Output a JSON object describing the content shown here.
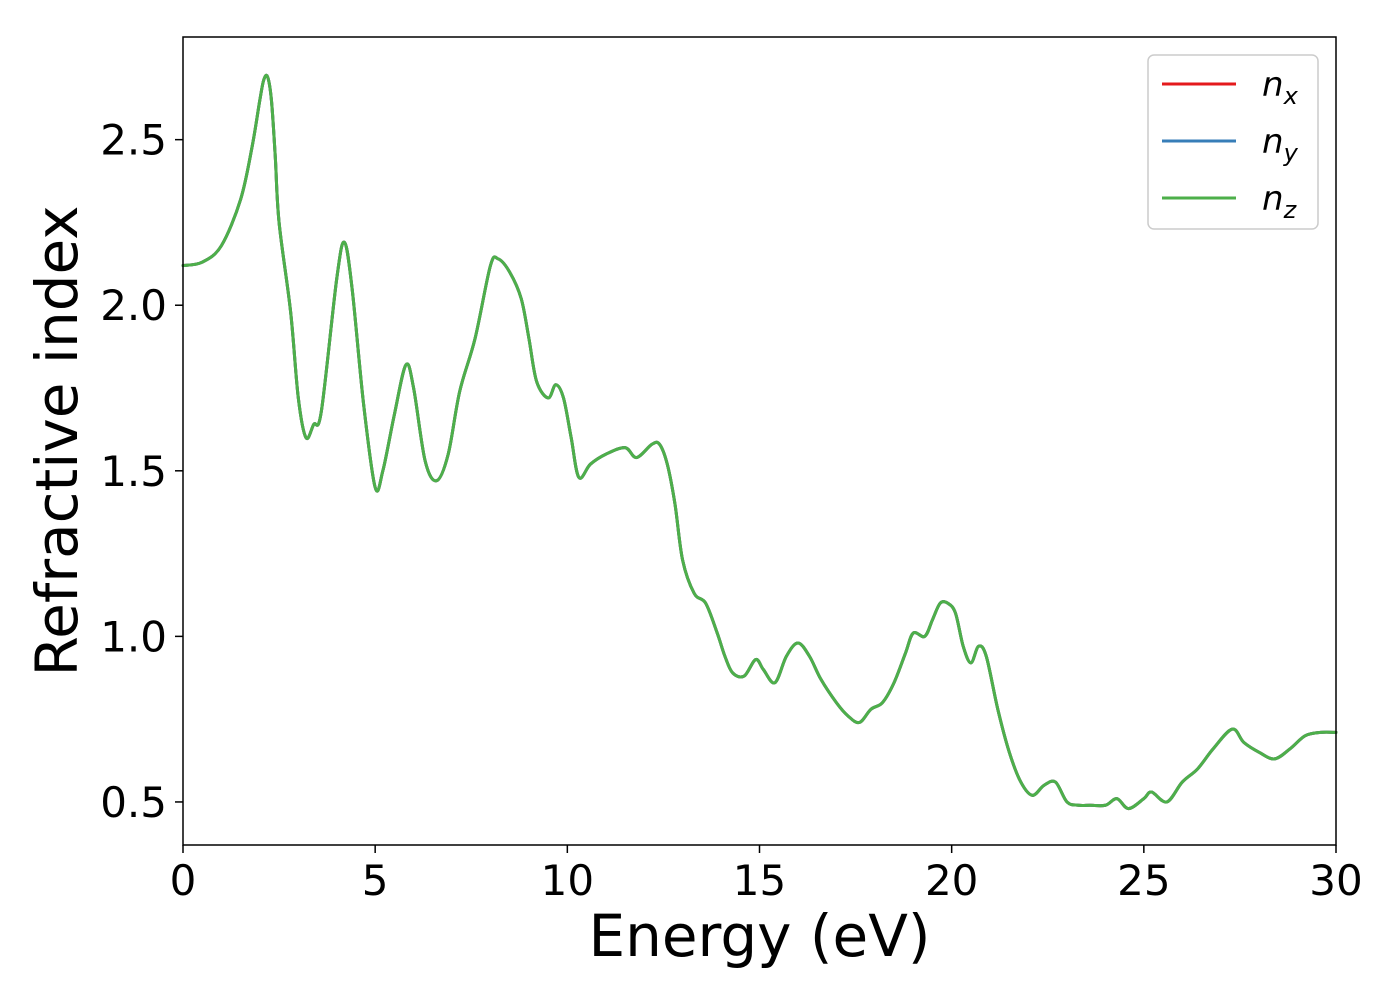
{
  "chart_data": {
    "type": "line",
    "title": "",
    "xlabel": "Energy (eV)",
    "ylabel": "Refractive index",
    "xlim": [
      0,
      30
    ],
    "ylim": [
      0.37,
      2.81
    ],
    "xticks": [
      0,
      5,
      10,
      15,
      20,
      25,
      30
    ],
    "yticks": [
      0.5,
      1.0,
      1.5,
      2.0,
      2.5
    ],
    "xtick_labels": [
      "0",
      "5",
      "10",
      "15",
      "20",
      "25",
      "30"
    ],
    "ytick_labels": [
      "0.5",
      "1.0",
      "1.5",
      "2.0",
      "2.5"
    ],
    "grid": false,
    "legend_position": "top-right",
    "series": [
      {
        "name": "n",
        "sub": "x",
        "color": "#e41a1c"
      },
      {
        "name": "n",
        "sub": "y",
        "color": "#377eb8"
      },
      {
        "name": "n",
        "sub": "z",
        "color": "#4daf4a"
      }
    ],
    "x": [
      0,
      0.5,
      1.0,
      1.5,
      1.8,
      2.0,
      2.1,
      2.2,
      2.3,
      2.4,
      2.5,
      2.8,
      3.0,
      3.2,
      3.4,
      3.6,
      4.0,
      4.2,
      4.4,
      4.7,
      5.0,
      5.2,
      5.5,
      5.8,
      6.0,
      6.3,
      6.6,
      6.9,
      7.2,
      7.6,
      8.0,
      8.2,
      8.5,
      8.8,
      9.0,
      9.2,
      9.5,
      9.7,
      9.9,
      10.1,
      10.3,
      10.6,
      11.0,
      11.5,
      11.8,
      12.2,
      12.4,
      12.6,
      12.8,
      13.0,
      13.3,
      13.6,
      13.9,
      14.1,
      14.3,
      14.6,
      14.9,
      15.1,
      15.4,
      15.7,
      16.0,
      16.3,
      16.6,
      17.0,
      17.3,
      17.6,
      17.9,
      18.2,
      18.5,
      18.8,
      19.0,
      19.3,
      19.5,
      19.7,
      19.9,
      20.1,
      20.3,
      20.5,
      20.7,
      20.9,
      21.2,
      21.5,
      21.8,
      22.1,
      22.4,
      22.7,
      23.0,
      23.3,
      23.6,
      24.0,
      24.3,
      24.6,
      25.0,
      25.2,
      25.6,
      26.0,
      26.4,
      26.8,
      27.3,
      27.6,
      28.0,
      28.4,
      28.8,
      29.2,
      29.6,
      30.0
    ],
    "n_values": [
      2.12,
      2.13,
      2.18,
      2.32,
      2.48,
      2.62,
      2.68,
      2.69,
      2.62,
      2.45,
      2.25,
      1.98,
      1.72,
      1.6,
      1.64,
      1.68,
      2.08,
      2.19,
      2.05,
      1.7,
      1.45,
      1.5,
      1.67,
      1.82,
      1.75,
      1.53,
      1.47,
      1.55,
      1.74,
      1.9,
      2.12,
      2.14,
      2.1,
      2.02,
      1.9,
      1.77,
      1.72,
      1.76,
      1.72,
      1.6,
      1.48,
      1.52,
      1.55,
      1.57,
      1.54,
      1.58,
      1.58,
      1.52,
      1.4,
      1.23,
      1.13,
      1.1,
      1.01,
      0.94,
      0.89,
      0.88,
      0.93,
      0.9,
      0.86,
      0.94,
      0.98,
      0.94,
      0.87,
      0.8,
      0.76,
      0.74,
      0.78,
      0.8,
      0.86,
      0.95,
      1.01,
      1.0,
      1.05,
      1.1,
      1.1,
      1.07,
      0.97,
      0.92,
      0.97,
      0.94,
      0.78,
      0.65,
      0.56,
      0.52,
      0.55,
      0.56,
      0.5,
      0.49,
      0.49,
      0.49,
      0.51,
      0.48,
      0.51,
      0.53,
      0.5,
      0.56,
      0.6,
      0.66,
      0.72,
      0.68,
      0.65,
      0.63,
      0.66,
      0.7,
      0.71,
      0.71
    ]
  }
}
